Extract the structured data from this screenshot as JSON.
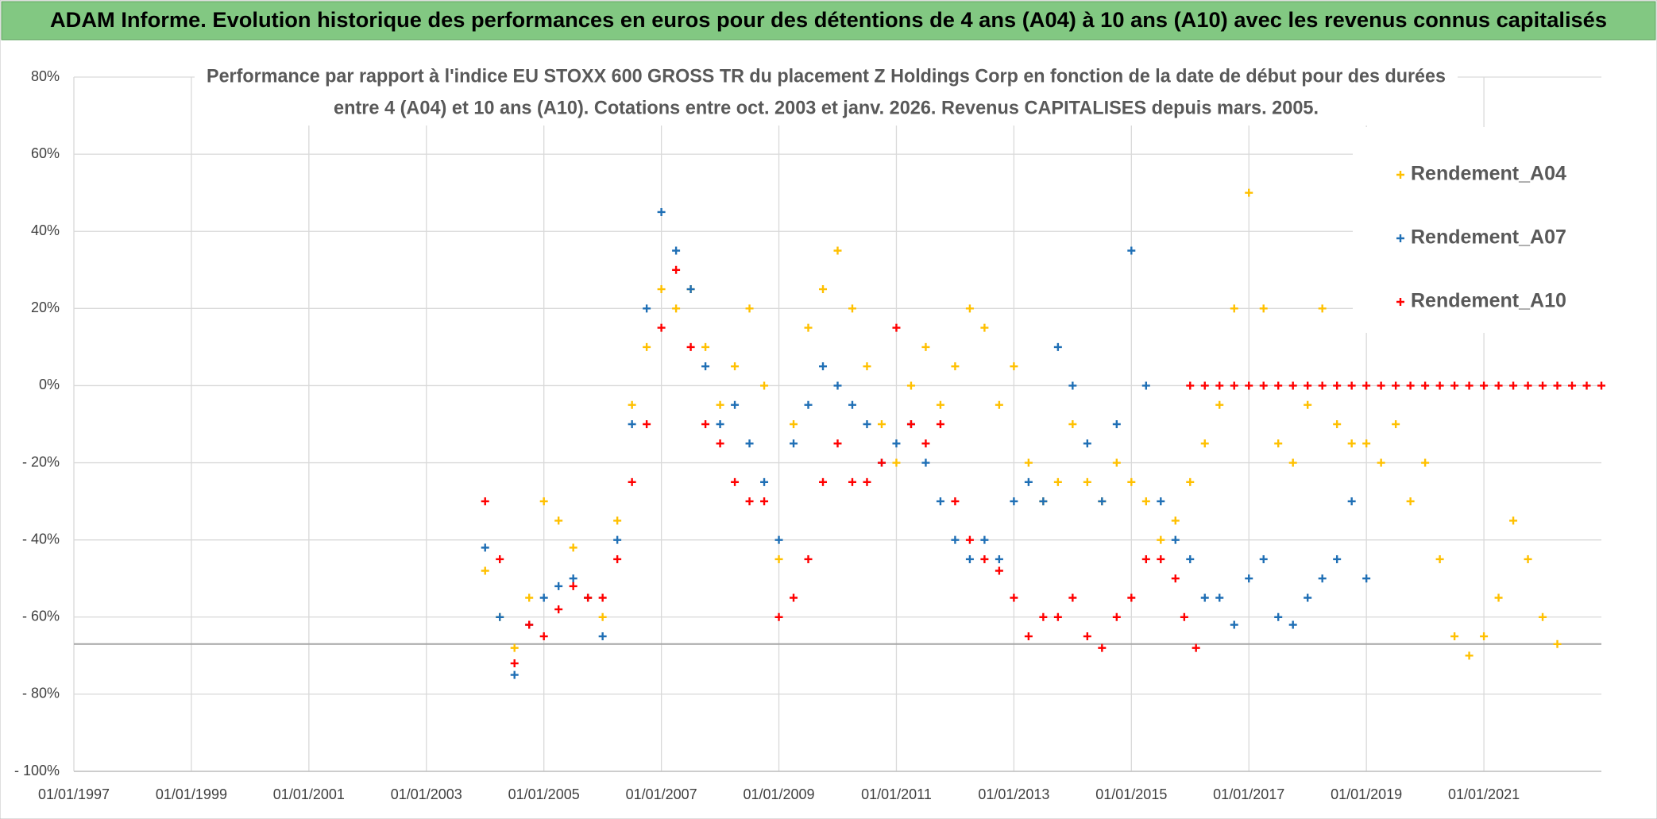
{
  "chart_data": {
    "type": "scatter",
    "title": "ADAM Informe. Evolution historique des performances en euros pour des détentions de 4 ans (A04) à 10 ans (A10) avec les revenus connus capitalisés",
    "subtitle": [
      "Performance  par rapport à l'indice EU STOXX 600 GROSS TR  du placement Z Holdings Corp en fonction de la date de début pour des durées",
      "entre 4 (A04) et 10 ans (A10). Cotations entre oct. 2003 et janv. 2026. Revenus CAPITALISES depuis mars. 2005."
    ],
    "xlim": [
      1997,
      2023
    ],
    "xticks": [
      {
        "value": 1997,
        "label": "01/01/1997"
      },
      {
        "value": 1999,
        "label": "01/01/1999"
      },
      {
        "value": 2001,
        "label": "01/01/2001"
      },
      {
        "value": 2003,
        "label": "01/01/2003"
      },
      {
        "value": 2005,
        "label": "01/01/2005"
      },
      {
        "value": 2007,
        "label": "01/01/2007"
      },
      {
        "value": 2009,
        "label": "01/01/2009"
      },
      {
        "value": 2011,
        "label": "01/01/2011"
      },
      {
        "value": 2013,
        "label": "01/01/2013"
      },
      {
        "value": 2015,
        "label": "01/01/2015"
      },
      {
        "value": 2017,
        "label": "01/01/2017"
      },
      {
        "value": 2019,
        "label": "01/01/2019"
      },
      {
        "value": 2021,
        "label": "01/01/2021"
      }
    ],
    "ylim": [
      -100,
      80
    ],
    "yticks": [
      {
        "value": 80,
        "label": "80%"
      },
      {
        "value": 60,
        "label": "60%"
      },
      {
        "value": 40,
        "label": "40%"
      },
      {
        "value": 20,
        "label": "20%"
      },
      {
        "value": 0,
        "label": "0%"
      },
      {
        "value": -20,
        "label": "- 20%"
      },
      {
        "value": -40,
        "label": "- 40%"
      },
      {
        "value": -60,
        "label": "- 60%"
      },
      {
        "value": -80,
        "label": "- 80%"
      },
      {
        "value": -100,
        "label": "- 100%"
      }
    ],
    "grid": true,
    "reference_line": -67,
    "legend": "upper right",
    "series": [
      {
        "name": "Rendement_A04",
        "color": "#ffc000",
        "x": [
          2004,
          2004.25,
          2004.5,
          2004.75,
          2005,
          2005.25,
          2005.5,
          2005.75,
          2006,
          2006.25,
          2006.5,
          2006.75,
          2007,
          2007.25,
          2007.5,
          2007.75,
          2008,
          2008.25,
          2008.5,
          2008.75,
          2009,
          2009.25,
          2009.5,
          2009.75,
          2010,
          2010.25,
          2010.5,
          2010.75,
          2011,
          2011.25,
          2011.5,
          2011.75,
          2012,
          2012.25,
          2012.5,
          2012.75,
          2013,
          2013.25,
          2013.5,
          2013.75,
          2014,
          2014.25,
          2014.5,
          2014.75,
          2015,
          2015.25,
          2015.5,
          2015.75,
          2016,
          2016.25,
          2016.5,
          2016.75,
          2017,
          2017.25,
          2017.5,
          2017.75,
          2018,
          2018.25,
          2018.5,
          2018.75,
          2019,
          2019.25,
          2019.5,
          2019.75,
          2020,
          2020.25,
          2020.5,
          2020.75,
          2021,
          2021.25,
          2021.5,
          2021.75,
          2022,
          2022.25
        ],
        "values": [
          -48,
          -60,
          -68,
          -55,
          -30,
          -35,
          -42,
          -55,
          -60,
          -35,
          -5,
          10,
          25,
          20,
          25,
          10,
          -5,
          5,
          20,
          0,
          -45,
          -10,
          15,
          25,
          35,
          20,
          5,
          -10,
          -20,
          0,
          10,
          -5,
          5,
          20,
          15,
          -5,
          5,
          -20,
          -30,
          -25,
          -10,
          -25,
          -30,
          -20,
          -25,
          -30,
          -40,
          -35,
          -25,
          -15,
          -5,
          20,
          50,
          20,
          -15,
          -20,
          -5,
          20,
          -10,
          -15,
          -15,
          -20,
          -10,
          -30,
          -20,
          -45,
          -65,
          -70,
          -65,
          -55,
          -35,
          -45,
          -60,
          -67
        ]
      },
      {
        "name": "Rendement_A07",
        "color": "#1f6fb5",
        "x": [
          2004,
          2004.25,
          2004.5,
          2004.75,
          2005,
          2005.25,
          2005.5,
          2005.75,
          2006,
          2006.25,
          2006.5,
          2006.75,
          2007,
          2007.25,
          2007.5,
          2007.75,
          2008,
          2008.25,
          2008.5,
          2008.75,
          2009,
          2009.25,
          2009.5,
          2009.75,
          2010,
          2010.25,
          2010.5,
          2010.75,
          2011,
          2011.25,
          2011.5,
          2011.75,
          2012,
          2012.25,
          2012.5,
          2012.75,
          2013,
          2013.25,
          2013.5,
          2013.75,
          2014,
          2014.25,
          2014.5,
          2014.75,
          2015,
          2015.25,
          2015.5,
          2015.75,
          2016,
          2016.25,
          2016.5,
          2016.75,
          2017,
          2017.25,
          2017.5,
          2017.75,
          2018,
          2018.25,
          2018.5,
          2018.75,
          2019
        ],
        "values": [
          -42,
          -60,
          -75,
          -62,
          -55,
          -52,
          -50,
          -55,
          -65,
          -40,
          -10,
          20,
          45,
          35,
          25,
          5,
          -10,
          -5,
          -15,
          -25,
          -40,
          -15,
          -5,
          5,
          0,
          -5,
          -10,
          -20,
          -15,
          -10,
          -20,
          -30,
          -40,
          -45,
          -40,
          -45,
          -30,
          -25,
          -30,
          10,
          0,
          -15,
          -30,
          -10,
          35,
          0,
          -30,
          -40,
          -45,
          -55,
          -55,
          -62,
          -50,
          -45,
          -60,
          -62,
          -55,
          -50,
          -45,
          -30,
          -50
        ]
      },
      {
        "name": "Rendement_A10",
        "color": "#ff0000",
        "x": [
          2004,
          2004.25,
          2004.5,
          2004.75,
          2005,
          2005.25,
          2005.5,
          2005.75,
          2006,
          2006.25,
          2006.5,
          2006.75,
          2007,
          2007.25,
          2007.5,
          2007.75,
          2008,
          2008.25,
          2008.5,
          2008.75,
          2009,
          2009.25,
          2009.5,
          2009.75,
          2010,
          2010.25,
          2010.5,
          2010.75,
          2011,
          2011.25,
          2011.5,
          2011.75,
          2012,
          2012.25,
          2012.5,
          2012.75,
          2013,
          2013.25,
          2013.5,
          2013.75,
          2014,
          2014.25,
          2014.5,
          2014.75,
          2015,
          2015.25,
          2015.5,
          2015.75,
          2015.9,
          2016.1,
          2016,
          2016.25,
          2016.5,
          2016.75,
          2017,
          2017.25,
          2017.5,
          2017.75,
          2018,
          2018.25,
          2018.5,
          2018.75,
          2019,
          2019.25,
          2019.5,
          2019.75,
          2020,
          2020.25,
          2020.5,
          2020.75,
          2021,
          2021.25,
          2021.5,
          2021.75,
          2022,
          2022.25,
          2022.5,
          2022.75,
          2023
        ],
        "values": [
          -30,
          -45,
          -72,
          -62,
          -65,
          -58,
          -52,
          -55,
          -55,
          -45,
          -25,
          -10,
          15,
          30,
          10,
          -10,
          -15,
          -25,
          -30,
          -30,
          -60,
          -55,
          -45,
          -25,
          -15,
          -25,
          -25,
          -20,
          15,
          -10,
          -15,
          -10,
          -30,
          -40,
          -45,
          -48,
          -55,
          -65,
          -60,
          -60,
          -55,
          -65,
          -68,
          -60,
          -55,
          -45,
          -45,
          -50,
          -60,
          -68,
          0,
          0,
          0,
          0,
          0,
          0,
          0,
          0,
          0,
          0,
          0,
          0,
          0,
          0,
          0,
          0,
          0,
          0,
          0,
          0,
          0,
          0,
          0,
          0,
          0,
          0,
          0,
          0,
          0
        ]
      }
    ]
  }
}
